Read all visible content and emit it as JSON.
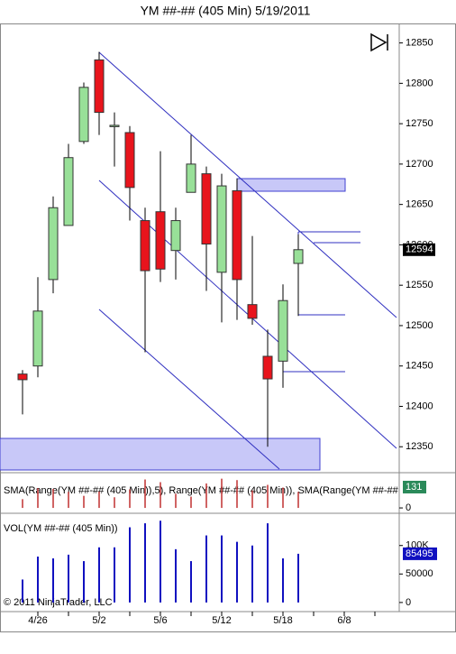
{
  "chart_data": {
    "type": "candlestick",
    "title": "YM ##-## (405 Min)  5/19/2011",
    "categories": [
      null,
      "4/26",
      null,
      null,
      null,
      "5/2",
      null,
      null,
      null,
      "5/6",
      null,
      null,
      null,
      "5/12",
      null,
      null,
      null,
      "5/18",
      null,
      null,
      null,
      "6/8",
      null,
      null,
      null
    ],
    "open": [
      12440,
      12450,
      12557,
      12624,
      12728,
      12829,
      12748,
      12739,
      12630,
      12641,
      12593,
      12665,
      12688,
      12566,
      12667,
      12526,
      12462,
      12456,
      12577,
      null,
      null,
      null,
      null,
      null,
      null
    ],
    "high": [
      12445,
      12560,
      12660,
      12725,
      12801,
      12839,
      12764,
      12747,
      12646,
      12716,
      12646,
      12736,
      12697,
      12688,
      12682,
      12611,
      12495,
      12551,
      12613,
      null,
      null,
      null,
      null,
      null,
      null
    ],
    "low": [
      12390,
      12436,
      12540,
      12624,
      12725,
      12736,
      12697,
      12630,
      12467,
      12554,
      12557,
      12665,
      12543,
      12504,
      12507,
      12501,
      12350,
      12423,
      12512,
      null,
      null,
      null,
      null,
      null,
      null
    ],
    "close": [
      12433,
      12518,
      12646,
      12708,
      12795,
      12764,
      12748,
      12671,
      12568,
      12570,
      12630,
      12700,
      12601,
      12673,
      12557,
      12509,
      12434,
      12531,
      12594,
      null,
      null,
      null,
      null,
      null,
      null
    ],
    "up_color": "#98e098",
    "down_color": "#e8141c",
    "ylim": [
      12319,
      12873
    ],
    "yticks": [
      12350,
      12400,
      12450,
      12500,
      12550,
      12600,
      12650,
      12700,
      12750,
      12800,
      12850
    ],
    "close_label": "12594",
    "range": {
      "name": "SMA(Range(YM ##-## (405 Min)),5), Range(YM ##-## (405 Min)), SMA(Range(YM ##-##",
      "color": "#c03030",
      "values": [
        55,
        124,
        120,
        101,
        76,
        103,
        67,
        117,
        179,
        162,
        89,
        71,
        154,
        184,
        175,
        110,
        145,
        128,
        101,
        null,
        null,
        null,
        null,
        null,
        null
      ],
      "ylim": [
        -28,
        216
      ],
      "yticks": [
        0
      ],
      "sma_current": 131
    },
    "volume": {
      "name": "VOL(YM ##-## (405 Min))",
      "color": "#1010c0",
      "values": [
        40300,
        80600,
        77400,
        83900,
        72600,
        96800,
        96800,
        132000,
        139000,
        143500,
        93500,
        72600,
        117700,
        117700,
        106500,
        100000,
        139000,
        77400,
        85495,
        null,
        null,
        null,
        null,
        null,
        null
      ],
      "ylim": [
        -16000,
        155000
      ],
      "yticks": [
        0,
        50000,
        {
          "value": 100000,
          "label": "100K"
        }
      ],
      "last_label": "85495"
    },
    "copyright": "© 2011 NinjaTrader, LLC"
  }
}
